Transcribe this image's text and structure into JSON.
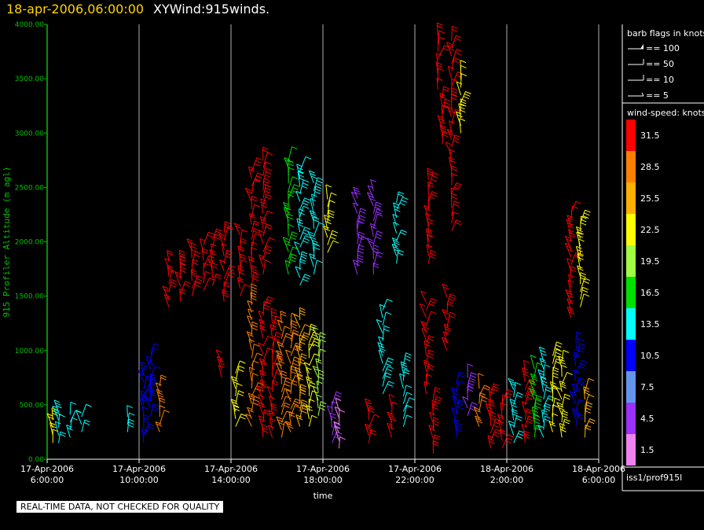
{
  "header": {
    "date": "18-apr-2006,06:00:00",
    "title": "XYWind:915winds."
  },
  "quality_note": "REAL-TIME DATA, NOT CHECKED FOR QUALITY",
  "source": "iss1/prof915l",
  "chart_data": {
    "type": "wind-barb profile",
    "ylabel": "915 Profiler Altitude (m agl)",
    "xlabel": "time",
    "ylim": [
      0,
      4000
    ],
    "yticks": [
      "0.00",
      "500.00",
      "1000.00",
      "1500.00",
      "2000.00",
      "2500.00",
      "3000.00",
      "3500.00",
      "4000.00"
    ],
    "xticks": [
      {
        "date": "17-Apr-2006",
        "time": "6:00:00"
      },
      {
        "date": "17-Apr-2006",
        "time": "10:00:00"
      },
      {
        "date": "17-Apr-2006",
        "time": "14:00:00"
      },
      {
        "date": "17-Apr-2006",
        "time": "18:00:00"
      },
      {
        "date": "17-Apr-2006",
        "time": "22:00:00"
      },
      {
        "date": "18-Apr-2006",
        "time": "2:00:00"
      },
      {
        "date": "18-Apr-2006",
        "time": "6:00:00"
      }
    ],
    "barb_legend": {
      "title": "barb flags in knots",
      "items": [
        "== 100",
        "== 50",
        "== 10",
        "== 5"
      ]
    },
    "speed_legend": {
      "title": "wind-speed: knots",
      "levels": [
        {
          "label": "31.5",
          "color": "#ff0000"
        },
        {
          "label": "28.5",
          "color": "#ff8000"
        },
        {
          "label": "25.5",
          "color": "#ffb000"
        },
        {
          "label": "22.5",
          "color": "#ffff00"
        },
        {
          "label": "19.5",
          "color": "#a0ff40"
        },
        {
          "label": "16.5",
          "color": "#00e000"
        },
        {
          "label": "13.5",
          "color": "#00ffff"
        },
        {
          "label": "10.5",
          "color": "#0000ff"
        },
        {
          "label": "7.5",
          "color": "#6495ed"
        },
        {
          "label": "4.5",
          "color": "#9b30ff"
        },
        {
          "label": "1.5",
          "color": "#ee82ee"
        }
      ]
    },
    "profiles": [
      {
        "x": 0.25,
        "bottom": 150,
        "top": 420,
        "color": "#ffff00"
      },
      {
        "x": 0.5,
        "bottom": 150,
        "top": 450,
        "color": "#00ffff"
      },
      {
        "x": 1.0,
        "bottom": 200,
        "top": 450,
        "color": "#00ffff"
      },
      {
        "x": 1.5,
        "bottom": 250,
        "top": 400,
        "color": "#00ffff"
      },
      {
        "x": 3.5,
        "bottom": 250,
        "top": 450,
        "color": "#00ffff"
      },
      {
        "x": 4.2,
        "bottom": 150,
        "top": 800,
        "color": "#0000ff"
      },
      {
        "x": 4.5,
        "bottom": 400,
        "top": 1000,
        "color": "#0000ff"
      },
      {
        "x": 4.9,
        "bottom": 250,
        "top": 700,
        "color": "#ff8000"
      },
      {
        "x": 5.3,
        "bottom": 1400,
        "top": 1850,
        "color": "#ff0000"
      },
      {
        "x": 5.8,
        "bottom": 1450,
        "top": 1800,
        "color": "#ff0000"
      },
      {
        "x": 6.3,
        "bottom": 1500,
        "top": 1950,
        "color": "#ff0000"
      },
      {
        "x": 6.8,
        "bottom": 1550,
        "top": 2000,
        "color": "#ff0000"
      },
      {
        "x": 7.2,
        "bottom": 1600,
        "top": 2050,
        "color": "#ff0000"
      },
      {
        "x": 7.6,
        "bottom": 750,
        "top": 950,
        "color": "#ff0000"
      },
      {
        "x": 7.7,
        "bottom": 1450,
        "top": 2100,
        "color": "#ff0000"
      },
      {
        "x": 8.2,
        "bottom": 300,
        "top": 800,
        "color": "#ffff00"
      },
      {
        "x": 8.4,
        "bottom": 1500,
        "top": 2100,
        "color": "#ff0000"
      },
      {
        "x": 8.9,
        "bottom": 300,
        "top": 1500,
        "color": "#ff8000"
      },
      {
        "x": 8.9,
        "bottom": 1600,
        "top": 2650,
        "color": "#ff0000"
      },
      {
        "x": 9.4,
        "bottom": 200,
        "top": 1400,
        "color": "#ff0000"
      },
      {
        "x": 9.4,
        "bottom": 1700,
        "top": 2750,
        "color": "#ff0000"
      },
      {
        "x": 9.8,
        "bottom": 200,
        "top": 1300,
        "color": "#ff0000"
      },
      {
        "x": 10.2,
        "bottom": 200,
        "top": 1300,
        "color": "#ff8000"
      },
      {
        "x": 10.6,
        "bottom": 250,
        "top": 1250,
        "color": "#ff8000"
      },
      {
        "x": 11.0,
        "bottom": 300,
        "top": 1300,
        "color": "#ffb000"
      },
      {
        "x": 11.4,
        "bottom": 300,
        "top": 1200,
        "color": "#ffff00"
      },
      {
        "x": 11.8,
        "bottom": 400,
        "top": 1100,
        "color": "#a0ff40"
      },
      {
        "x": 10.5,
        "bottom": 1700,
        "top": 2800,
        "color": "#00e000"
      },
      {
        "x": 11.0,
        "bottom": 1600,
        "top": 2700,
        "color": "#00ffff"
      },
      {
        "x": 11.6,
        "bottom": 1700,
        "top": 2600,
        "color": "#00ffff"
      },
      {
        "x": 12.2,
        "bottom": 1900,
        "top": 2400,
        "color": "#ffff00"
      },
      {
        "x": 12.4,
        "bottom": 150,
        "top": 500,
        "color": "#9b30ff"
      },
      {
        "x": 12.7,
        "bottom": 100,
        "top": 450,
        "color": "#ee82ee"
      },
      {
        "x": 13.5,
        "bottom": 1700,
        "top": 2400,
        "color": "#9b30ff"
      },
      {
        "x": 14.0,
        "bottom": 150,
        "top": 450,
        "color": "#ff0000"
      },
      {
        "x": 14.2,
        "bottom": 1700,
        "top": 2500,
        "color": "#9b30ff"
      },
      {
        "x": 14.6,
        "bottom": 600,
        "top": 1400,
        "color": "#00ffff"
      },
      {
        "x": 15.0,
        "bottom": 200,
        "top": 500,
        "color": "#ff0000"
      },
      {
        "x": 15.2,
        "bottom": 1800,
        "top": 2400,
        "color": "#00ffff"
      },
      {
        "x": 15.5,
        "bottom": 300,
        "top": 900,
        "color": "#00ffff"
      },
      {
        "x": 16.5,
        "bottom": 600,
        "top": 1500,
        "color": "#ff0000"
      },
      {
        "x": 16.6,
        "bottom": 1800,
        "top": 2600,
        "color": "#ff0000"
      },
      {
        "x": 16.8,
        "bottom": 50,
        "top": 550,
        "color": "#ff0000"
      },
      {
        "x": 17.0,
        "bottom": 3400,
        "top": 3950,
        "color": "#ff0000"
      },
      {
        "x": 17.2,
        "bottom": 2900,
        "top": 3350,
        "color": "#ff0000"
      },
      {
        "x": 17.4,
        "bottom": 1000,
        "top": 1500,
        "color": "#ff0000"
      },
      {
        "x": 17.6,
        "bottom": 2100,
        "top": 3900,
        "color": "#ff0000"
      },
      {
        "x": 17.8,
        "bottom": 200,
        "top": 700,
        "color": "#0000ff"
      },
      {
        "x": 18.0,
        "bottom": 3000,
        "top": 3600,
        "color": "#ffff00"
      },
      {
        "x": 18.3,
        "bottom": 400,
        "top": 800,
        "color": "#9b30ff"
      },
      {
        "x": 18.8,
        "bottom": 300,
        "top": 700,
        "color": "#ff8000"
      },
      {
        "x": 19.3,
        "bottom": 100,
        "top": 650,
        "color": "#ff0000"
      },
      {
        "x": 19.8,
        "bottom": 100,
        "top": 550,
        "color": "#ff0000"
      },
      {
        "x": 20.3,
        "bottom": 150,
        "top": 700,
        "color": "#00ffff"
      },
      {
        "x": 20.8,
        "bottom": 150,
        "top": 800,
        "color": "#ff0000"
      },
      {
        "x": 21.2,
        "bottom": 200,
        "top": 850,
        "color": "#00e000"
      },
      {
        "x": 21.6,
        "bottom": 200,
        "top": 900,
        "color": "#00ffff"
      },
      {
        "x": 22.0,
        "bottom": 250,
        "top": 950,
        "color": "#ffff00"
      },
      {
        "x": 22.4,
        "bottom": 200,
        "top": 900,
        "color": "#ffff00"
      },
      {
        "x": 22.8,
        "bottom": 1300,
        "top": 2300,
        "color": "#ff0000"
      },
      {
        "x": 23.0,
        "bottom": 300,
        "top": 1100,
        "color": "#0000ff"
      },
      {
        "x": 23.2,
        "bottom": 1400,
        "top": 2200,
        "color": "#ffff00"
      },
      {
        "x": 23.4,
        "bottom": 200,
        "top": 650,
        "color": "#ffb000"
      }
    ]
  }
}
